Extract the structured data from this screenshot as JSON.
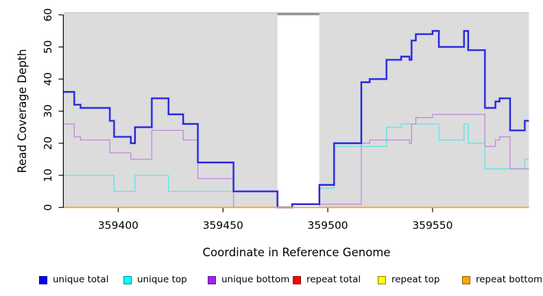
{
  "chart_data": {
    "type": "step-line",
    "title": "",
    "xlabel": "Coordinate in Reference Genome",
    "ylabel": "Read Coverage Depth",
    "xlim": [
      359374,
      359596
    ],
    "ylim": [
      0,
      60
    ],
    "xticks": [
      359400,
      359450,
      359500,
      359550
    ],
    "yticks": [
      0,
      10,
      20,
      30,
      40,
      50,
      60
    ],
    "grid": false,
    "legend_position": "bottom",
    "panel_bg": "#dcdcdc",
    "panel_top_edge_color": "#c3c3c3",
    "gap_region": {
      "from": 359476,
      "to": 359496,
      "fill": "#ffffff",
      "bar_color": "#8f8f8f"
    },
    "axis_color": "#000000",
    "series": [
      {
        "name": "repeat total",
        "color": "#cc2222",
        "width": 1.2,
        "halo": "",
        "points": [
          [
            359374,
            0
          ]
        ]
      },
      {
        "name": "repeat top",
        "color": "#e6e600",
        "width": 1.2,
        "halo": "",
        "points": [
          [
            359374,
            0
          ]
        ]
      },
      {
        "name": "unique top",
        "color": "#66e3e3",
        "width": 1.4,
        "halo": "",
        "points": [
          [
            359374,
            10
          ],
          [
            359398,
            5
          ],
          [
            359408,
            10
          ],
          [
            359424,
            5
          ],
          [
            359476,
            0
          ],
          [
            359496,
            6
          ],
          [
            359503,
            19
          ],
          [
            359528,
            25
          ],
          [
            359535,
            26
          ],
          [
            359553,
            21
          ],
          [
            359565,
            26
          ],
          [
            359567,
            20
          ],
          [
            359575,
            12
          ],
          [
            359594,
            15
          ]
        ]
      },
      {
        "name": "unique bottom",
        "color": "#c08cde",
        "width": 1.4,
        "halo": "",
        "points": [
          [
            359374,
            26
          ],
          [
            359379,
            22
          ],
          [
            359382,
            21
          ],
          [
            359396,
            17
          ],
          [
            359406,
            15
          ],
          [
            359416,
            24
          ],
          [
            359431,
            21
          ],
          [
            359438,
            9
          ],
          [
            359455,
            0
          ],
          [
            359483,
            1
          ],
          [
            359516,
            20
          ],
          [
            359520,
            21
          ],
          [
            359539,
            20
          ],
          [
            359540,
            26
          ],
          [
            359542,
            28
          ],
          [
            359550,
            29
          ],
          [
            359575,
            19
          ],
          [
            359580,
            21
          ],
          [
            359582,
            22
          ],
          [
            359587,
            12
          ]
        ]
      },
      {
        "name": "unique total",
        "color": "#2424de",
        "width": 2.2,
        "halo": "#9a9ae8",
        "points": [
          [
            359374,
            36
          ],
          [
            359379,
            32
          ],
          [
            359382,
            31
          ],
          [
            359396,
            27
          ],
          [
            359398,
            22
          ],
          [
            359406,
            20
          ],
          [
            359408,
            25
          ],
          [
            359416,
            34
          ],
          [
            359424,
            29
          ],
          [
            359431,
            26
          ],
          [
            359438,
            14
          ],
          [
            359455,
            5
          ],
          [
            359476,
            0
          ],
          [
            359483,
            1
          ],
          [
            359496,
            7
          ],
          [
            359503,
            20
          ],
          [
            359516,
            39
          ],
          [
            359520,
            40
          ],
          [
            359528,
            46
          ],
          [
            359535,
            47
          ],
          [
            359539,
            46
          ],
          [
            359540,
            52
          ],
          [
            359542,
            54
          ],
          [
            359550,
            55
          ],
          [
            359553,
            50
          ],
          [
            359565,
            55
          ],
          [
            359567,
            49
          ],
          [
            359575,
            31
          ],
          [
            359580,
            33
          ],
          [
            359582,
            34
          ],
          [
            359587,
            24
          ],
          [
            359594,
            27
          ]
        ]
      },
      {
        "name": "repeat bottom",
        "color": "#ff9e2c",
        "width": 1.8,
        "halo": "",
        "points": [
          [
            359374,
            0
          ]
        ]
      }
    ]
  },
  "legend": {
    "items": [
      {
        "label": "unique total",
        "fill": "#0000ff",
        "border": "#000090"
      },
      {
        "label": "unique top",
        "fill": "#00ffff",
        "border": "#008b8b"
      },
      {
        "label": "unique bottom",
        "fill": "#a020f0",
        "border": "#5d1391"
      },
      {
        "label": "repeat total",
        "fill": "#ff0000",
        "border": "#900000"
      },
      {
        "label": "repeat top",
        "fill": "#ffff00",
        "border": "#808000"
      },
      {
        "label": "repeat bottom",
        "fill": "#ffa500",
        "border": "#8b5a00"
      }
    ]
  }
}
